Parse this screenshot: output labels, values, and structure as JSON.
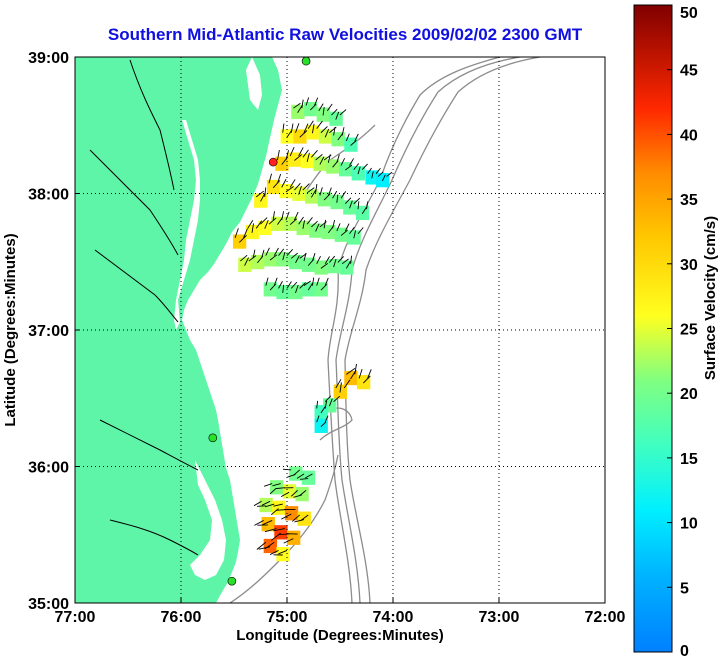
{
  "title": "Southern Mid-Atlantic Raw Velocities 2009/02/02 2300 GMT",
  "x_axis": {
    "label": "Longitude (Degrees:Minutes)",
    "min": -77,
    "max": -72,
    "ticks": [
      {
        "value": -77,
        "label": "77:00"
      },
      {
        "value": -76,
        "label": "76:00"
      },
      {
        "value": -75,
        "label": "75:00"
      },
      {
        "value": -74,
        "label": "74:00"
      },
      {
        "value": -73,
        "label": "73:00"
      },
      {
        "value": -72,
        "label": "72:00"
      }
    ]
  },
  "y_axis": {
    "label": "Latitude (Degrees:Minutes)",
    "min": 35,
    "max": 39,
    "ticks": [
      {
        "value": 39,
        "label": "39:00"
      },
      {
        "value": 38,
        "label": "38:00"
      },
      {
        "value": 37,
        "label": "37:00"
      },
      {
        "value": 36,
        "label": "36:00"
      },
      {
        "value": 35,
        "label": "35:00"
      }
    ]
  },
  "colorbar": {
    "label": "Surface Velocity (cm/s)",
    "min": 0,
    "max": 50,
    "ticks": [
      "0",
      "5",
      "10",
      "15",
      "20",
      "25",
      "30",
      "35",
      "40",
      "45",
      "50"
    ]
  },
  "colors": {
    "land": "#5ef5a8",
    "title": "#1010e0",
    "grid": "#000000",
    "bathymetry": "#8c8c8c",
    "station_green": "#28e028",
    "station_red": "#ff2020"
  },
  "stations": [
    {
      "lon": -74.82,
      "lat": 38.97,
      "color": "green"
    },
    {
      "lon": -75.13,
      "lat": 38.23,
      "color": "red"
    },
    {
      "lon": -75.7,
      "lat": 36.21,
      "color": "green"
    },
    {
      "lon": -75.52,
      "lat": 35.16,
      "color": "green"
    }
  ],
  "velocity_regions": [
    {
      "name": "north",
      "cells": [
        {
          "lon": -74.9,
          "lat": 38.6,
          "v": 22
        },
        {
          "lon": -74.78,
          "lat": 38.62,
          "v": 20
        },
        {
          "lon": -74.66,
          "lat": 38.58,
          "v": 21
        },
        {
          "lon": -74.54,
          "lat": 38.55,
          "v": 19
        },
        {
          "lon": -75.0,
          "lat": 38.42,
          "v": 26
        },
        {
          "lon": -74.88,
          "lat": 38.42,
          "v": 30
        },
        {
          "lon": -74.76,
          "lat": 38.45,
          "v": 27
        },
        {
          "lon": -74.64,
          "lat": 38.42,
          "v": 24
        },
        {
          "lon": -74.52,
          "lat": 38.4,
          "v": 21
        },
        {
          "lon": -74.4,
          "lat": 38.36,
          "v": 17
        },
        {
          "lon": -74.2,
          "lat": 38.12,
          "v": 12
        },
        {
          "lon": -74.1,
          "lat": 38.1,
          "v": 11
        },
        {
          "lon": -75.05,
          "lat": 38.22,
          "v": 31
        },
        {
          "lon": -74.93,
          "lat": 38.25,
          "v": 28
        },
        {
          "lon": -74.81,
          "lat": 38.24,
          "v": 26
        },
        {
          "lon": -74.69,
          "lat": 38.22,
          "v": 23
        },
        {
          "lon": -74.57,
          "lat": 38.2,
          "v": 22
        },
        {
          "lon": -74.45,
          "lat": 38.18,
          "v": 19
        },
        {
          "lon": -74.33,
          "lat": 38.15,
          "v": 17
        },
        {
          "lon": -75.25,
          "lat": 37.95,
          "v": 27
        },
        {
          "lon": -75.13,
          "lat": 38.05,
          "v": 29
        },
        {
          "lon": -75.01,
          "lat": 38.02,
          "v": 26
        },
        {
          "lon": -74.89,
          "lat": 38.0,
          "v": 25
        },
        {
          "lon": -74.77,
          "lat": 37.98,
          "v": 23
        },
        {
          "lon": -74.65,
          "lat": 37.96,
          "v": 21
        },
        {
          "lon": -74.53,
          "lat": 37.94,
          "v": 20
        },
        {
          "lon": -74.41,
          "lat": 37.9,
          "v": 19
        },
        {
          "lon": -74.29,
          "lat": 37.86,
          "v": 18
        },
        {
          "lon": -75.45,
          "lat": 37.65,
          "v": 31
        },
        {
          "lon": -75.33,
          "lat": 37.72,
          "v": 27
        },
        {
          "lon": -75.21,
          "lat": 37.75,
          "v": 26
        },
        {
          "lon": -75.09,
          "lat": 37.78,
          "v": 24
        },
        {
          "lon": -74.97,
          "lat": 37.78,
          "v": 23
        },
        {
          "lon": -74.85,
          "lat": 37.75,
          "v": 22
        },
        {
          "lon": -74.73,
          "lat": 37.73,
          "v": 21
        },
        {
          "lon": -74.61,
          "lat": 37.72,
          "v": 21
        },
        {
          "lon": -74.49,
          "lat": 37.7,
          "v": 20
        },
        {
          "lon": -74.37,
          "lat": 37.68,
          "v": 19
        },
        {
          "lon": -75.4,
          "lat": 37.48,
          "v": 24
        },
        {
          "lon": -75.28,
          "lat": 37.5,
          "v": 23
        },
        {
          "lon": -75.16,
          "lat": 37.52,
          "v": 22
        },
        {
          "lon": -75.04,
          "lat": 37.52,
          "v": 21
        },
        {
          "lon": -74.92,
          "lat": 37.5,
          "v": 20
        },
        {
          "lon": -74.8,
          "lat": 37.48,
          "v": 20
        },
        {
          "lon": -74.68,
          "lat": 37.46,
          "v": 21
        },
        {
          "lon": -74.56,
          "lat": 37.47,
          "v": 20
        },
        {
          "lon": -74.44,
          "lat": 37.46,
          "v": 19
        },
        {
          "lon": -75.16,
          "lat": 37.3,
          "v": 20
        },
        {
          "lon": -75.04,
          "lat": 37.28,
          "v": 19
        },
        {
          "lon": -74.92,
          "lat": 37.28,
          "v": 20
        },
        {
          "lon": -74.8,
          "lat": 37.3,
          "v": 19
        },
        {
          "lon": -74.68,
          "lat": 37.3,
          "v": 20
        }
      ]
    },
    {
      "name": "middle",
      "cells": [
        {
          "lon": -74.4,
          "lat": 36.65,
          "v": 33
        },
        {
          "lon": -74.28,
          "lat": 36.62,
          "v": 29
        },
        {
          "lon": -74.5,
          "lat": 36.55,
          "v": 31
        },
        {
          "lon": -74.6,
          "lat": 36.45,
          "v": 19
        },
        {
          "lon": -74.68,
          "lat": 36.4,
          "v": 16
        },
        {
          "lon": -74.68,
          "lat": 36.3,
          "v": 12
        }
      ]
    },
    {
      "name": "south",
      "cells": [
        {
          "lon": -74.92,
          "lat": 35.95,
          "v": 20
        },
        {
          "lon": -74.8,
          "lat": 35.92,
          "v": 19
        },
        {
          "lon": -75.1,
          "lat": 35.85,
          "v": 21
        },
        {
          "lon": -74.98,
          "lat": 35.82,
          "v": 25
        },
        {
          "lon": -74.86,
          "lat": 35.8,
          "v": 22
        },
        {
          "lon": -75.2,
          "lat": 35.72,
          "v": 23
        },
        {
          "lon": -75.08,
          "lat": 35.7,
          "v": 27
        },
        {
          "lon": -74.96,
          "lat": 35.66,
          "v": 37
        },
        {
          "lon": -74.84,
          "lat": 35.62,
          "v": 29
        },
        {
          "lon": -75.18,
          "lat": 35.58,
          "v": 33
        },
        {
          "lon": -75.06,
          "lat": 35.52,
          "v": 41
        },
        {
          "lon": -74.94,
          "lat": 35.48,
          "v": 34
        },
        {
          "lon": -75.16,
          "lat": 35.42,
          "v": 39
        },
        {
          "lon": -75.04,
          "lat": 35.36,
          "v": 26
        }
      ]
    }
  ]
}
